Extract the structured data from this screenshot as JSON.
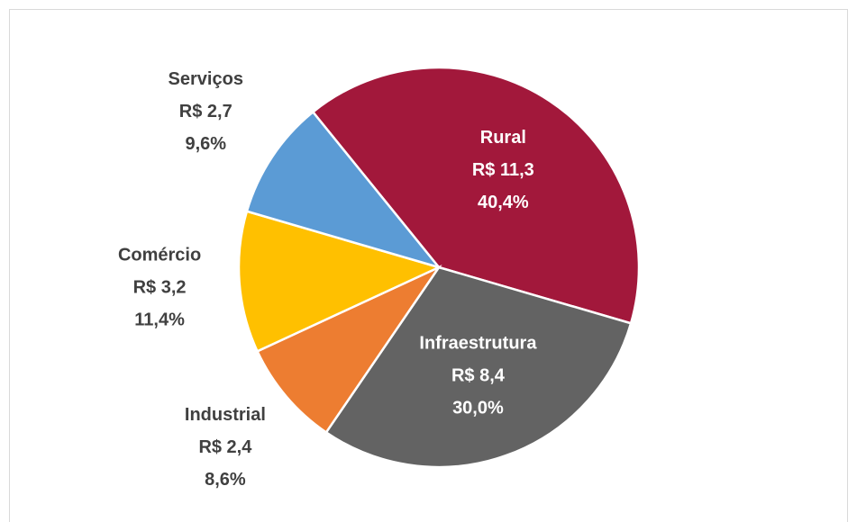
{
  "chart_data": {
    "type": "pie",
    "categories": [
      "Rural",
      "Infraestrutura",
      "Industrial",
      "Comércio",
      "Serviços"
    ],
    "values": [
      11.3,
      8.4,
      2.4,
      3.2,
      2.7
    ],
    "value_labels": [
      "R$ 11,3",
      "R$ 8,4",
      "R$ 2,4",
      "R$ 3,2",
      "R$ 2,7"
    ],
    "percent_labels": [
      "40,4%",
      "30,0%",
      "8,6%",
      "11,4%",
      "9,6%"
    ],
    "colors": [
      "#a2183b",
      "#636363",
      "#ed7d31",
      "#ffc000",
      "#5b9bd5"
    ]
  }
}
